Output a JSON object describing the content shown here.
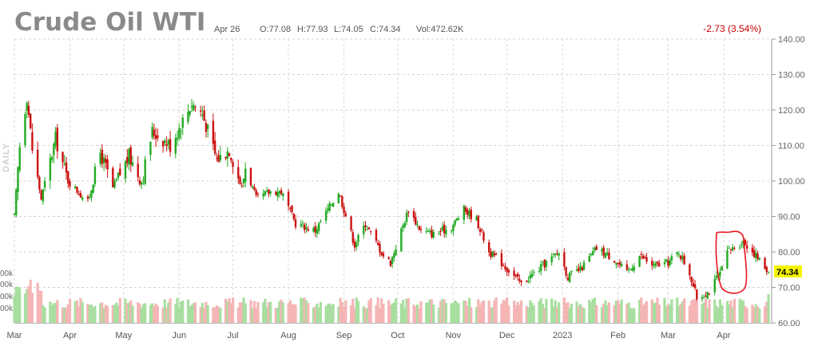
{
  "header": {
    "title": "Crude Oil WTI",
    "date": "Apr 26",
    "open": "O:77.08",
    "high": "H:77.93",
    "low": "L:74.05",
    "close": "C:74.34",
    "volume": "Vol:472.62K",
    "change": "-2.73 (3.54%)",
    "period": "DAILY",
    "last_price": "74.34"
  },
  "colors": {
    "up": "#22aa22",
    "down": "#cc1111",
    "volume_up": "#a8dfa0",
    "volume_down": "#f5b5b5",
    "annotation": "#e8141e",
    "price_tag": "#f5f500"
  },
  "volume_axis_labels": [
    "00k",
    "00k",
    "00k",
    "00k"
  ],
  "chart_data": {
    "type": "candlestick",
    "title": "Crude Oil WTI",
    "ylim": [
      60,
      140
    ],
    "yticks": [
      "140.00",
      "130.00",
      "120.00",
      "110.00",
      "100.00",
      "90.00",
      "80.00",
      "70.00",
      "60.00"
    ],
    "ytick_values": [
      140,
      130,
      120,
      110,
      100,
      90,
      80,
      70,
      60
    ],
    "xticks": [
      "Mar",
      "Apr",
      "May",
      "Jun",
      "Jul",
      "Aug",
      "Sep",
      "Oct",
      "Nov",
      "Dec",
      "2023",
      "Feb",
      "Mar",
      "Apr"
    ],
    "xtick_dates": [
      "2022-03-01",
      "2022-04-01",
      "2022-05-01",
      "2022-06-01",
      "2022-07-01",
      "2022-08-01",
      "2022-09-01",
      "2022-10-01",
      "2022-11-01",
      "2022-12-01",
      "2023-01-01",
      "2023-02-01",
      "2023-03-01",
      "2023-04-01"
    ],
    "date_range": [
      "2022-03-01",
      "2023-04-26"
    ],
    "grid": true,
    "close_path": [
      [
        "2022-03-01",
        90
      ],
      [
        "2022-03-04",
        110
      ],
      [
        "2022-03-08",
        124
      ],
      [
        "2022-03-11",
        109
      ],
      [
        "2022-03-16",
        95
      ],
      [
        "2022-03-24",
        112
      ],
      [
        "2022-03-31",
        100
      ],
      [
        "2022-04-11",
        94
      ],
      [
        "2022-04-18",
        108
      ],
      [
        "2022-04-25",
        98
      ],
      [
        "2022-05-04",
        107
      ],
      [
        "2022-05-11",
        100
      ],
      [
        "2022-05-17",
        114
      ],
      [
        "2022-05-27",
        110
      ],
      [
        "2022-06-08",
        122
      ],
      [
        "2022-06-14",
        119
      ],
      [
        "2022-06-22",
        106
      ],
      [
        "2022-06-29",
        109
      ],
      [
        "2022-07-06",
        98
      ],
      [
        "2022-07-08",
        104
      ],
      [
        "2022-07-14",
        95
      ],
      [
        "2022-07-22",
        97
      ],
      [
        "2022-07-28",
        97
      ],
      [
        "2022-08-05",
        88
      ],
      [
        "2022-08-16",
        86
      ],
      [
        "2022-08-29",
        97
      ],
      [
        "2022-09-07",
        82
      ],
      [
        "2022-09-13",
        88
      ],
      [
        "2022-09-23",
        79
      ],
      [
        "2022-09-27",
        77
      ],
      [
        "2022-10-07",
        92
      ],
      [
        "2022-10-14",
        86
      ],
      [
        "2022-10-21",
        85
      ],
      [
        "2022-10-31",
        87
      ],
      [
        "2022-11-07",
        92
      ],
      [
        "2022-11-14",
        89
      ],
      [
        "2022-11-21",
        80
      ],
      [
        "2022-11-28",
        77
      ],
      [
        "2022-12-09",
        71
      ],
      [
        "2022-12-16",
        74
      ],
      [
        "2022-12-30",
        80
      ],
      [
        "2023-01-04",
        73
      ],
      [
        "2023-01-11",
        75
      ],
      [
        "2023-01-20",
        81
      ],
      [
        "2023-01-30",
        78
      ],
      [
        "2023-02-06",
        74
      ],
      [
        "2023-02-13",
        79
      ],
      [
        "2023-02-21",
        76
      ],
      [
        "2023-03-01",
        77
      ],
      [
        "2023-03-07",
        80
      ],
      [
        "2023-03-13",
        74
      ],
      [
        "2023-03-17",
        67
      ],
      [
        "2023-03-24",
        69
      ],
      [
        "2023-03-31",
        75
      ],
      [
        "2023-04-03",
        80
      ],
      [
        "2023-04-12",
        83
      ],
      [
        "2023-04-19",
        79
      ],
      [
        "2023-04-26",
        74.34
      ]
    ]
  }
}
